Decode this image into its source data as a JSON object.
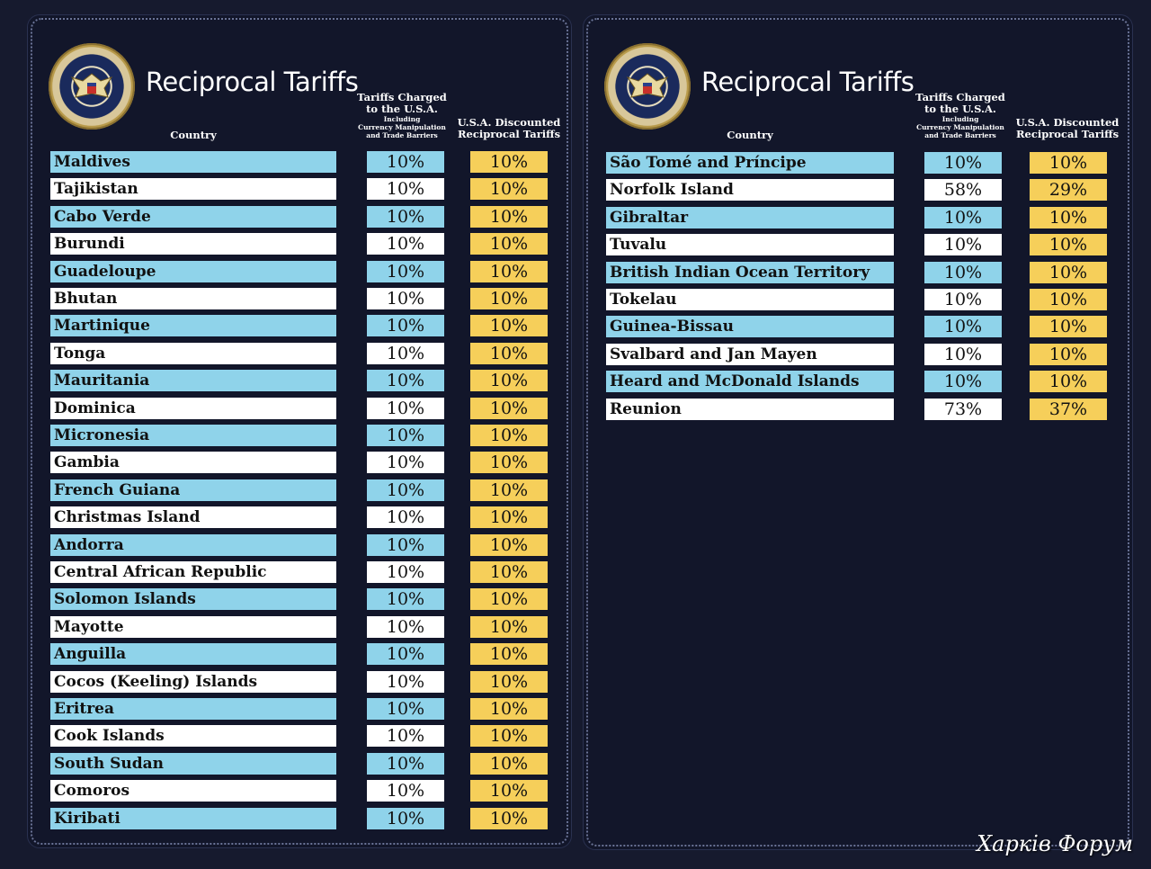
{
  "colors": {
    "background": "#161a2e",
    "row_blue": "#8fd3ea",
    "row_white": "#ffffff",
    "discount_yellow": "#f6cf5a",
    "text": "#111111"
  },
  "seal_text": "SEAL OF THE PRESIDENT OF THE UNITED STATES",
  "header": {
    "title": "Reciprocal Tariffs",
    "country": "Country",
    "charged_line1": "Tariffs Charged",
    "charged_line2": "to the U.S.A.",
    "charged_sub1": "Including",
    "charged_sub2": "Currency Manipulation",
    "charged_sub3": "and Trade Barriers",
    "discounted_line1": "U.S.A. Discounted",
    "discounted_line2": "Reciprocal Tariffs"
  },
  "left_rows": [
    {
      "country": "Maldives",
      "charged": "10%",
      "discounted": "10%"
    },
    {
      "country": "Tajikistan",
      "charged": "10%",
      "discounted": "10%"
    },
    {
      "country": "Cabo Verde",
      "charged": "10%",
      "discounted": "10%"
    },
    {
      "country": "Burundi",
      "charged": "10%",
      "discounted": "10%"
    },
    {
      "country": "Guadeloupe",
      "charged": "10%",
      "discounted": "10%"
    },
    {
      "country": "Bhutan",
      "charged": "10%",
      "discounted": "10%"
    },
    {
      "country": "Martinique",
      "charged": "10%",
      "discounted": "10%"
    },
    {
      "country": "Tonga",
      "charged": "10%",
      "discounted": "10%"
    },
    {
      "country": "Mauritania",
      "charged": "10%",
      "discounted": "10%"
    },
    {
      "country": "Dominica",
      "charged": "10%",
      "discounted": "10%"
    },
    {
      "country": "Micronesia",
      "charged": "10%",
      "discounted": "10%"
    },
    {
      "country": "Gambia",
      "charged": "10%",
      "discounted": "10%"
    },
    {
      "country": "French Guiana",
      "charged": "10%",
      "discounted": "10%"
    },
    {
      "country": "Christmas Island",
      "charged": "10%",
      "discounted": "10%"
    },
    {
      "country": "Andorra",
      "charged": "10%",
      "discounted": "10%"
    },
    {
      "country": "Central African Republic",
      "charged": "10%",
      "discounted": "10%"
    },
    {
      "country": "Solomon Islands",
      "charged": "10%",
      "discounted": "10%"
    },
    {
      "country": "Mayotte",
      "charged": "10%",
      "discounted": "10%"
    },
    {
      "country": "Anguilla",
      "charged": "10%",
      "discounted": "10%"
    },
    {
      "country": "Cocos (Keeling) Islands",
      "charged": "10%",
      "discounted": "10%"
    },
    {
      "country": "Eritrea",
      "charged": "10%",
      "discounted": "10%"
    },
    {
      "country": "Cook Islands",
      "charged": "10%",
      "discounted": "10%"
    },
    {
      "country": "South Sudan",
      "charged": "10%",
      "discounted": "10%"
    },
    {
      "country": "Comoros",
      "charged": "10%",
      "discounted": "10%"
    },
    {
      "country": "Kiribati",
      "charged": "10%",
      "discounted": "10%"
    }
  ],
  "right_rows": [
    {
      "country": "São Tomé and Príncipe",
      "charged": "10%",
      "discounted": "10%"
    },
    {
      "country": "Norfolk Island",
      "charged": "58%",
      "discounted": "29%"
    },
    {
      "country": "Gibraltar",
      "charged": "10%",
      "discounted": "10%"
    },
    {
      "country": "Tuvalu",
      "charged": "10%",
      "discounted": "10%"
    },
    {
      "country": "British Indian Ocean Territory",
      "charged": "10%",
      "discounted": "10%"
    },
    {
      "country": "Tokelau",
      "charged": "10%",
      "discounted": "10%"
    },
    {
      "country": "Guinea-Bissau",
      "charged": "10%",
      "discounted": "10%"
    },
    {
      "country": "Svalbard and Jan Mayen",
      "charged": "10%",
      "discounted": "10%"
    },
    {
      "country": "Heard and McDonald Islands",
      "charged": "10%",
      "discounted": "10%"
    },
    {
      "country": "Reunion",
      "charged": "73%",
      "discounted": "37%"
    }
  ],
  "watermark": "Харків Форум"
}
